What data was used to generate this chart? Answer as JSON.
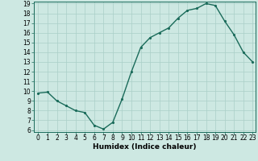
{
  "x": [
    0,
    1,
    2,
    3,
    4,
    5,
    6,
    7,
    8,
    9,
    10,
    11,
    12,
    13,
    14,
    15,
    16,
    17,
    18,
    19,
    20,
    21,
    22,
    23
  ],
  "y": [
    9.8,
    9.9,
    9.0,
    8.5,
    8.0,
    7.8,
    6.5,
    6.1,
    6.8,
    9.2,
    12.0,
    14.5,
    15.5,
    16.0,
    16.5,
    17.5,
    18.3,
    18.5,
    19.0,
    18.8,
    17.2,
    15.8,
    14.0,
    13.0
  ],
  "line_color": "#1a6b5a",
  "marker_color": "#1a6b5a",
  "bg_color": "#cde8e2",
  "grid_color": "#aacfc8",
  "xlabel": "Humidex (Indice chaleur)",
  "ylim_min": 6,
  "ylim_max": 19,
  "xlim_min": 0,
  "xlim_max": 23,
  "yticks": [
    6,
    7,
    8,
    9,
    10,
    11,
    12,
    13,
    14,
    15,
    16,
    17,
    18,
    19
  ],
  "xticks": [
    0,
    1,
    2,
    3,
    4,
    5,
    6,
    7,
    8,
    9,
    10,
    11,
    12,
    13,
    14,
    15,
    16,
    17,
    18,
    19,
    20,
    21,
    22,
    23
  ],
  "xtick_labels": [
    "0",
    "1",
    "2",
    "3",
    "4",
    "5",
    "6",
    "7",
    "8",
    "9",
    "10",
    "11",
    "12",
    "13",
    "14",
    "15",
    "16",
    "17",
    "18",
    "19",
    "20",
    "21",
    "22",
    "23"
  ],
  "ytick_labels": [
    "6",
    "7",
    "8",
    "9",
    "10",
    "11",
    "12",
    "13",
    "14",
    "15",
    "16",
    "17",
    "18",
    "19"
  ],
  "xlabel_fontsize": 6.5,
  "tick_fontsize": 5.5,
  "line_width": 1.0,
  "marker_size": 2.5
}
